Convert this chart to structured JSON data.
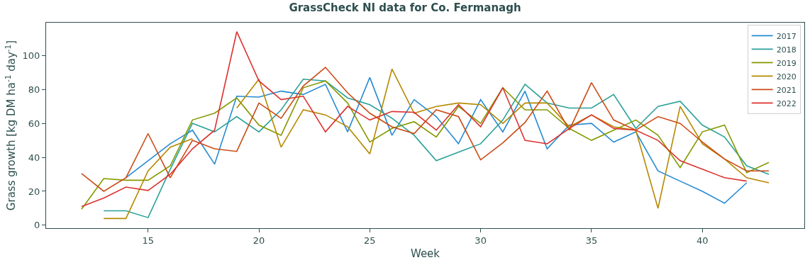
{
  "chart_data": {
    "type": "line",
    "title": "GrassCheck NI data for Co. Fermanagh",
    "xlabel": "Week",
    "ylabel": "Grass growth [kg DM ha$^{-1}$ day$^{-1}$]",
    "x": [
      12,
      13,
      14,
      15,
      16,
      17,
      18,
      19,
      20,
      21,
      22,
      23,
      24,
      25,
      26,
      27,
      28,
      29,
      30,
      31,
      32,
      33,
      34,
      35,
      36,
      37,
      38,
      39,
      40,
      41,
      42,
      43
    ],
    "series": [
      {
        "name": "2017",
        "color": "#268bd2",
        "values": [
          null,
          null,
          28,
          38,
          48,
          56,
          36,
          76,
          75.5,
          79,
          77,
          83,
          55,
          87,
          53,
          74,
          64,
          48,
          74,
          55,
          79,
          45,
          59,
          60,
          49,
          55,
          32,
          26,
          20,
          13,
          25,
          null
        ]
      },
      {
        "name": "2018",
        "color": "#2aa198",
        "values": [
          null,
          8.5,
          8.5,
          4.5,
          33,
          60,
          55,
          64,
          55,
          68,
          86,
          85,
          75,
          71,
          63,
          53,
          38,
          43,
          48,
          62,
          83,
          72,
          69,
          69,
          77,
          57,
          70,
          73,
          59,
          52,
          35,
          30
        ]
      },
      {
        "name": "2019",
        "color": "#859900",
        "values": [
          9.5,
          27.5,
          26.5,
          26.5,
          35,
          62,
          66,
          75,
          59,
          53,
          81,
          85,
          72,
          49,
          57,
          61,
          52,
          70,
          60,
          81,
          68,
          68,
          57,
          50,
          56,
          62,
          53,
          34,
          55,
          59,
          31,
          37
        ]
      },
      {
        "name": "2020",
        "color": "#b58900",
        "values": [
          null,
          4,
          4,
          32,
          46,
          51,
          null,
          69,
          86,
          46,
          68,
          65,
          58,
          42,
          92,
          66,
          70,
          72,
          71,
          60,
          72,
          72,
          58,
          65,
          58,
          56,
          10,
          70,
          48,
          39,
          28,
          25
        ]
      },
      {
        "name": "2021",
        "color": "#cb4b16",
        "values": [
          30.5,
          20,
          28,
          54,
          28,
          50,
          45,
          43.5,
          72,
          63,
          82,
          93,
          78,
          66,
          58,
          54,
          68,
          64,
          38.5,
          48.5,
          60.5,
          79,
          56,
          84,
          62,
          56,
          64,
          60,
          49,
          39,
          32,
          32
        ]
      },
      {
        "name": "2022",
        "color": "#dc322f",
        "values": [
          11,
          16,
          22.5,
          20.5,
          30,
          45,
          56,
          114,
          85,
          74,
          76,
          55,
          70,
          62,
          67,
          66.5,
          56,
          71,
          58,
          81,
          50,
          48,
          57,
          65,
          57,
          56,
          50,
          38,
          33,
          28,
          26,
          null
        ]
      }
    ],
    "xlim": [
      10.4,
      44.6
    ],
    "xticks": [
      15,
      20,
      25,
      30,
      35,
      40
    ],
    "ylim": [
      -1.7,
      119.3
    ],
    "yticks": [
      0,
      20,
      40,
      60,
      80,
      100
    ],
    "grid": false,
    "legend": "top right",
    "marker": "none",
    "line_style": "solid"
  }
}
